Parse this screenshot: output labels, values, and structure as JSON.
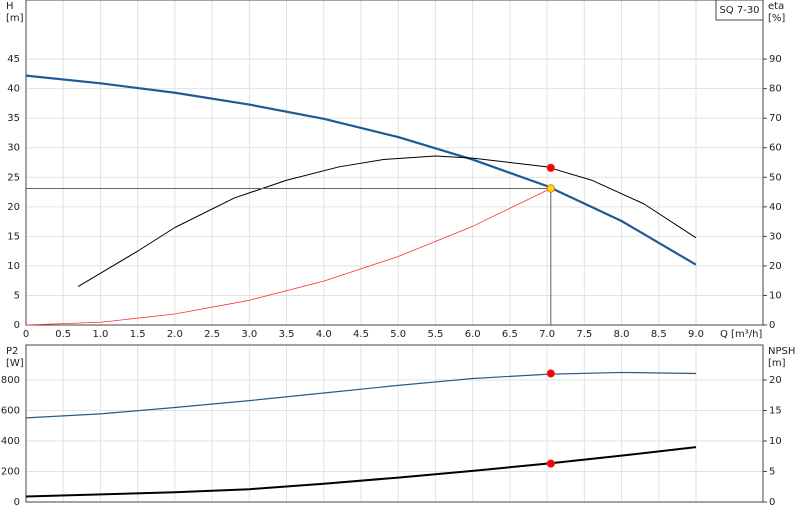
{
  "chart_data": [
    {
      "type": "line",
      "title": "SQ 7-30",
      "x_label": "Q [m³/h]",
      "y_label": "H",
      "y_unit": "[m]",
      "y2_label": "eta",
      "y2_unit": "[%]",
      "xlim": [
        0,
        9.9
      ],
      "xticks": [
        0,
        0.5,
        {
          "value": 1,
          "label": "1.0"
        },
        1.5,
        {
          "value": 2,
          "label": "2.0"
        },
        2.5,
        {
          "value": 3,
          "label": "3.0"
        },
        3.5,
        {
          "value": 4,
          "label": "4.0"
        },
        4.5,
        {
          "value": 5,
          "label": "5.0"
        },
        5.5,
        {
          "value": 6,
          "label": "6.0"
        },
        6.5,
        {
          "value": 7,
          "label": "7.0"
        },
        7.5,
        {
          "value": 8,
          "label": "8.0"
        },
        8.5,
        {
          "value": 9,
          "label": "9.0"
        }
      ],
      "ylim": [
        0,
        55
      ],
      "yticks": [
        0,
        5,
        10,
        15,
        20,
        25,
        30,
        35,
        40,
        45
      ],
      "y2lim": [
        0,
        110
      ],
      "y2ticks": [
        0,
        10,
        20,
        30,
        40,
        50,
        60,
        70,
        80,
        90
      ],
      "grid": true,
      "series": [
        {
          "color": "#1f5a96",
          "width": 2.2,
          "x": [
            0,
            1,
            2,
            3,
            4,
            5,
            6,
            7,
            8,
            9
          ],
          "values": [
            42.2,
            40.9,
            39.3,
            37.3,
            34.9,
            31.8,
            28.0,
            23.5,
            17.6,
            10.2
          ]
        },
        {
          "color": "#000000",
          "width": 1,
          "axis": "y2",
          "x": [
            0.7,
            1.5,
            2,
            2.8,
            3.5,
            4.2,
            4.8,
            5.5,
            6,
            6.5,
            7,
            7.6,
            8.3,
            9
          ],
          "values": [
            13,
            25,
            33,
            43,
            49,
            53.5,
            56,
            57.2,
            56.5,
            55,
            53.5,
            49,
            41,
            29.5
          ]
        },
        {
          "color": "#ff3030",
          "width": 0.8,
          "x": [
            0,
            1,
            2,
            3,
            4,
            5,
            6,
            7,
            7.05
          ],
          "values": [
            0,
            0.46,
            1.86,
            4.18,
            7.43,
            11.6,
            16.7,
            22.8,
            23.1
          ]
        }
      ],
      "markers": [
        {
          "x": 7.05,
          "value": 23.1,
          "color": "#ffd700",
          "guides": true
        },
        {
          "x": 7.05,
          "value": 53.2,
          "axis": "y2",
          "color": "#ff0000"
        }
      ]
    },
    {
      "type": "line",
      "y_label": "P2",
      "y_unit": "[W]",
      "y2_label": "NPSH",
      "y2_unit": "[m]",
      "ylim": [
        0,
        1030
      ],
      "yticks": [
        0,
        200,
        400,
        600,
        800
      ],
      "y2lim": [
        0,
        25.75
      ],
      "y2ticks": [
        0,
        5,
        10,
        15,
        20
      ],
      "grid": true,
      "series": [
        {
          "color": "#2a5a8a",
          "width": 1.2,
          "x": [
            0,
            1,
            2,
            3,
            4,
            5,
            6,
            7,
            8,
            9
          ],
          "values": [
            552,
            578,
            620,
            665,
            715,
            765,
            810,
            838,
            850,
            843
          ]
        },
        {
          "color": "#000000",
          "width": 2,
          "axis": "y2",
          "x": [
            0,
            2,
            3,
            4,
            5,
            6,
            7,
            8,
            9
          ],
          "values": [
            0.9,
            1.6,
            2.1,
            3.0,
            4.0,
            5.1,
            6.3,
            7.6,
            9.0
          ]
        }
      ],
      "markers": [
        {
          "x": 7.05,
          "value": 843,
          "color": "#ff0000"
        },
        {
          "x": 7.05,
          "value": 6.3,
          "axis": "y2",
          "color": "#ff0000"
        }
      ]
    }
  ]
}
